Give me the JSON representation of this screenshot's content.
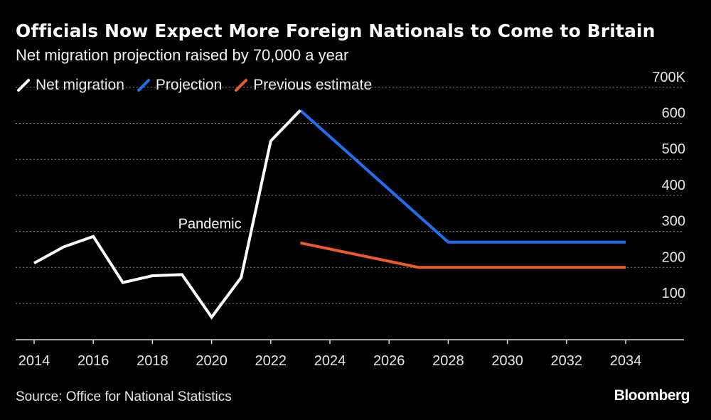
{
  "header": {
    "title": "Officials Now Expect More Foreign Nationals to Come to Britain",
    "subtitle": "Net migration projection raised by 70,000 a year"
  },
  "footer": {
    "source": "Source: Office for National Statistics",
    "brand": "Bloomberg"
  },
  "colors": {
    "background": "#000000",
    "net_migration": "#ffffff",
    "projection": "#1f6ff0",
    "previous_estimate": "#f05a28",
    "grid": "#8a8a8a"
  },
  "chart_data": {
    "type": "line",
    "title": "Officials Now Expect More Foreign Nationals to Come to Britain",
    "subtitle": "Net migration projection raised by 70,000 a year",
    "xlim": [
      2014,
      2034
    ],
    "x_ticks": [
      "2014",
      "2016",
      "2018",
      "2020",
      "2022",
      "2024",
      "2026",
      "2028",
      "2030",
      "2032",
      "2034"
    ],
    "ylim": [
      50,
      700
    ],
    "y_ticks": [
      100,
      200,
      300,
      400,
      500,
      600,
      700
    ],
    "y_tick_labels": [
      "100",
      "200",
      "300",
      "400",
      "500",
      "600",
      "700K"
    ],
    "grid": true,
    "legend_position": "top-left",
    "series": [
      {
        "name": "Net migration",
        "color": "#ffffff",
        "x": [
          2014,
          2015,
          2016,
          2017,
          2018,
          2019,
          2020,
          2021,
          2022,
          2023
        ],
        "values": [
          212,
          257,
          286,
          158,
          177,
          180,
          62,
          172,
          551,
          636
        ]
      },
      {
        "name": "Projection",
        "color": "#1f6ff0",
        "x": [
          2023,
          2028,
          2034
        ],
        "values": [
          636,
          270,
          270
        ]
      },
      {
        "name": "Previous estimate",
        "color": "#f05a28",
        "x": [
          2023,
          2027,
          2034
        ],
        "values": [
          268,
          200,
          200
        ]
      }
    ],
    "annotations": [
      {
        "text": "Pandemic",
        "x": 2020,
        "y": 300
      }
    ]
  }
}
